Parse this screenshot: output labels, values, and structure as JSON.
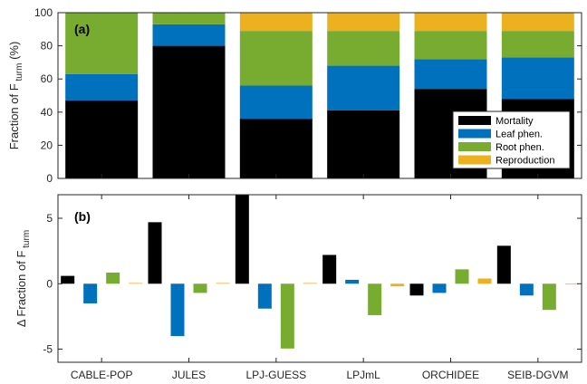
{
  "chart_data": [
    {
      "type": "bar",
      "stacked": true,
      "panel_label": "(a)",
      "ylabel": "Fraction of F",
      "ylabel_sub": "turm",
      "ylabel_unit": "(%)",
      "ylim": [
        0,
        100
      ],
      "yticks": [
        0,
        20,
        40,
        60,
        80,
        100
      ],
      "categories": [
        "CABLE-POP",
        "JULES",
        "LPJ-GUESS",
        "LPJmL",
        "ORCHIDEE",
        "SEIB-DGVM"
      ],
      "series": [
        {
          "name": "Mortality",
          "color": "#000000",
          "values": [
            47,
            80,
            36,
            41,
            54,
            48
          ]
        },
        {
          "name": "Leaf phen.",
          "color": "#0072BD",
          "values": [
            16,
            13,
            20,
            27,
            18,
            25
          ]
        },
        {
          "name": "Root phen.",
          "color": "#77AC30",
          "values": [
            37,
            7,
            33,
            21,
            17,
            16
          ]
        },
        {
          "name": "Reproduction",
          "color": "#EDB120",
          "values": [
            0,
            0,
            11,
            11,
            11,
            11
          ]
        }
      ],
      "legend_position": "bottom-right"
    },
    {
      "type": "bar",
      "grouped": true,
      "panel_label": "(b)",
      "ylabel_prefix": "Δ",
      "ylabel": "Fraction of F",
      "ylabel_sub": "turm",
      "ylim": [
        -6,
        6.8
      ],
      "yticks": [
        -5,
        0,
        5
      ],
      "categories": [
        "CABLE-POP",
        "JULES",
        "LPJ-GUESS",
        "LPJmL",
        "ORCHIDEE",
        "SEIB-DGVM"
      ],
      "series": [
        {
          "name": "Mortality",
          "color": "#000000",
          "values": [
            0.6,
            4.7,
            6.8,
            2.2,
            -0.9,
            2.9
          ]
        },
        {
          "name": "Leaf phen.",
          "color": "#0072BD",
          "values": [
            -1.5,
            -4.0,
            -1.9,
            0.3,
            -0.7,
            -0.9
          ]
        },
        {
          "name": "Root phen.",
          "color": "#77AC30",
          "values": [
            0.85,
            -0.7,
            -4.95,
            -2.4,
            1.1,
            -2.0
          ]
        },
        {
          "name": "Reproduction",
          "color": "#EDB120",
          "values": [
            0,
            0,
            0.05,
            -0.2,
            0.4,
            -0.05
          ]
        }
      ]
    }
  ]
}
